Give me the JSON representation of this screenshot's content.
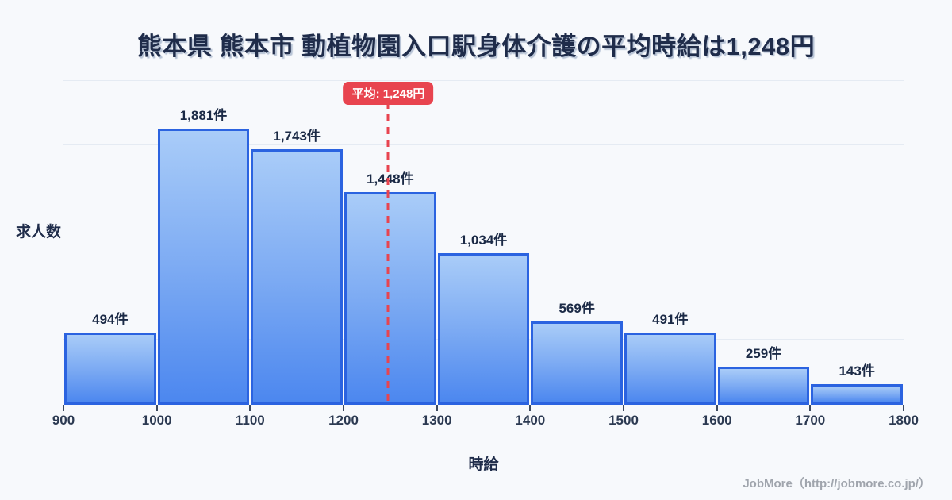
{
  "title": "熊本県 熊本市 動植物園入口駅身体介護の平均時給は1,248円",
  "y_axis_label": "求人数",
  "x_axis_label": "時給",
  "average_badge": "平均: 1,248円",
  "footer_credit": "JobMore（http://jobmore.co.jp/）",
  "chart_data": {
    "type": "bar",
    "title": "熊本県 熊本市 動植物園入口駅身体介護の平均時給は1,248円",
    "xlabel": "時給",
    "ylabel": "求人数",
    "x_min": 900,
    "x_max": 1800,
    "bin_edges": [
      900,
      1000,
      1100,
      1200,
      1300,
      1400,
      1500,
      1600,
      1700,
      1800
    ],
    "x_ticks": [
      "900",
      "1000",
      "1100",
      "1200",
      "1300",
      "1400",
      "1500",
      "1600",
      "1700",
      "1800"
    ],
    "categories": [
      "900-1000",
      "1000-1100",
      "1100-1200",
      "1200-1300",
      "1300-1400",
      "1400-1500",
      "1500-1600",
      "1600-1700",
      "1700-1800"
    ],
    "values": [
      494,
      1881,
      1743,
      1448,
      1034,
      569,
      491,
      259,
      143
    ],
    "bar_labels": [
      "494件",
      "1,881件",
      "1,743件",
      "1,448件",
      "1,034件",
      "569件",
      "491件",
      "259件",
      "143件"
    ],
    "unit": "件",
    "average": {
      "value": 1248,
      "label": "平均: 1,248円"
    },
    "grid": true,
    "legend": false,
    "colors": {
      "background": "#f7f9fc",
      "bar_gradient_top": "#a9ccf8",
      "bar_gradient_bottom": "#4c87ef",
      "bar_border": "#2b63e0",
      "average_line": "#e8444f",
      "title_text": "#1f2c4a",
      "axis_text": "#2c3a52",
      "gridline": "#e5ebf3",
      "footer_text": "#a0a5ad"
    }
  }
}
